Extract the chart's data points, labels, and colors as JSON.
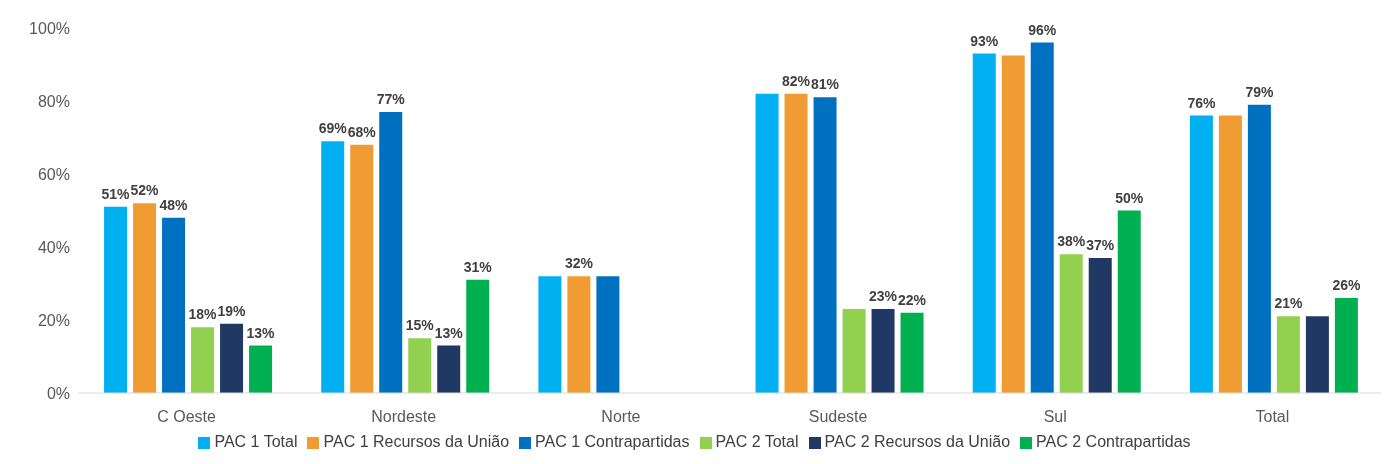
{
  "chart_data": {
    "type": "bar",
    "categories": [
      "C Oeste",
      "Nordeste",
      "Norte",
      "Sudeste",
      "Sul",
      "Total"
    ],
    "series": [
      {
        "name": "PAC 1 Total",
        "color": "#00b0f0",
        "values": [
          51,
          69,
          32,
          82,
          93,
          76
        ],
        "value_labels": [
          "51%",
          "69%",
          null,
          null,
          "93%",
          "76%"
        ]
      },
      {
        "name": "PAC 1 Recursos da União",
        "color": "#f09c32",
        "values": [
          52,
          68,
          32,
          82,
          92.5,
          76
        ],
        "value_labels": [
          "52%",
          "68%",
          "32%",
          "82%",
          null,
          null
        ]
      },
      {
        "name": "PAC 1 Contrapartidas",
        "color": "#0070c0",
        "values": [
          48,
          77,
          32,
          81,
          96,
          79
        ],
        "value_labels": [
          "48%",
          "77%",
          null,
          "81%",
          "96%",
          "79%"
        ]
      },
      {
        "name": "PAC 2 Total",
        "color": "#92d050",
        "values": [
          18,
          15,
          null,
          23,
          38,
          21
        ],
        "value_labels": [
          "18%",
          "15%",
          null,
          null,
          "38%",
          "21%"
        ]
      },
      {
        "name": "PAC 2 Recursos da União",
        "color": "#1f3864",
        "values": [
          19,
          13,
          null,
          23,
          37,
          21
        ],
        "value_labels": [
          "19%",
          "13%",
          null,
          "23%",
          "37%",
          null
        ]
      },
      {
        "name": "PAC 2 Contrapartidas",
        "color": "#00b050",
        "values": [
          13,
          31,
          null,
          22,
          50,
          26
        ],
        "value_labels": [
          "13%",
          "31%",
          null,
          "22%",
          "50%",
          "26%"
        ]
      }
    ],
    "ylim": [
      0,
      100
    ],
    "yticks": [
      {
        "value": 0,
        "label": "0%"
      },
      {
        "value": 20,
        "label": "20%"
      },
      {
        "value": 40,
        "label": "40%"
      },
      {
        "value": 60,
        "label": "60%"
      },
      {
        "value": 80,
        "label": "80%"
      },
      {
        "value": 100,
        "label": "100%"
      }
    ],
    "grid": false,
    "legend": "bottom"
  }
}
